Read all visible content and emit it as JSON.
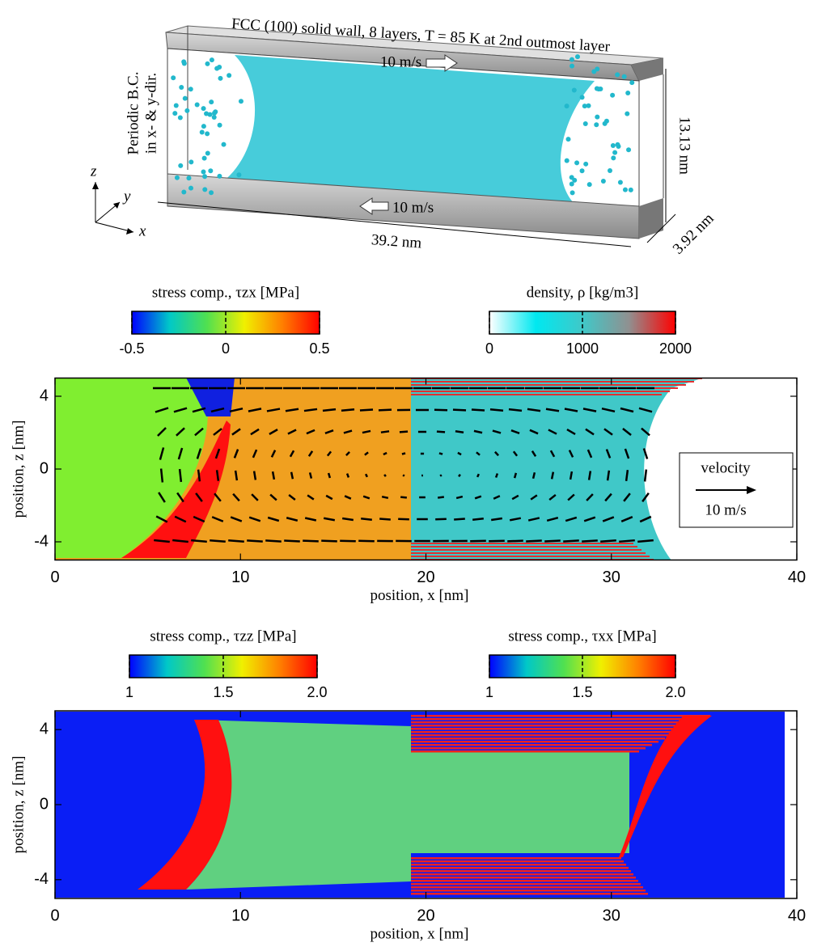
{
  "schematic": {
    "title": "FCC (100) solid wall, 8 layers, T = 85 K at 2nd outmost layer",
    "top_velocity": "10 m/s",
    "bottom_velocity": "10 m/s",
    "boundary": [
      "Periodic B.C.",
      "in x- & y-dir."
    ],
    "length": "39.2 nm",
    "height": "13.13 nm",
    "depth": "3.92 nm",
    "axes": [
      "x",
      "y",
      "z"
    ]
  },
  "colorbars": [
    {
      "label": "stress comp., τzx [MPa]",
      "lim": [
        -0.5,
        0.5
      ],
      "ticks": [
        -0.5,
        0,
        0.5
      ],
      "colors": [
        "#0000ff",
        "#00c8c8",
        "#50e050",
        "#f0f000",
        "#ff8000",
        "#ff0000"
      ]
    },
    {
      "label": "density, ρ [kg/m3]",
      "lim": [
        0,
        2000
      ],
      "ticks": [
        0,
        1000,
        2000
      ],
      "colors": [
        "#ffffff",
        "#00e8f0",
        "#40c8c8",
        "#909090",
        "#ff0000"
      ]
    },
    {
      "label": "stress comp.,  τzz [MPa]",
      "lim": [
        1,
        2
      ],
      "ticks": [
        1,
        1.5,
        {
          "value": 2,
          "label": "2.0"
        }
      ],
      "colors": [
        "#0000ff",
        "#00c8c8",
        "#50e050",
        "#f0f000",
        "#ff8000",
        "#ff0000"
      ]
    },
    {
      "label": "stress comp.,  τxx [MPa]",
      "lim": [
        1,
        2
      ],
      "ticks": [
        1,
        1.5,
        {
          "value": 2,
          "label": "2.0"
        }
      ],
      "colors": [
        "#0000ff",
        "#00c8c8",
        "#50e050",
        "#f0f000",
        "#ff8000",
        "#ff0000"
      ]
    }
  ],
  "panels": [
    {
      "xlabel": "position, x [nm]",
      "ylabel": "position, z [nm]",
      "xlim": [
        0,
        40
      ],
      "xticks": [
        0,
        10,
        20,
        30,
        40
      ],
      "ylim": [
        -5,
        5
      ],
      "yticks": [
        -4,
        0,
        4
      ],
      "legend": {
        "title": "velocity",
        "scale": "10 m/s"
      }
    },
    {
      "xlabel": "position, x [nm]",
      "ylabel": "position, z [nm]",
      "xlim": [
        0,
        40
      ],
      "xticks": [
        0,
        10,
        20,
        30,
        40
      ],
      "ylim": [
        -5,
        5
      ],
      "yticks": [
        -4,
        0,
        4
      ]
    }
  ]
}
